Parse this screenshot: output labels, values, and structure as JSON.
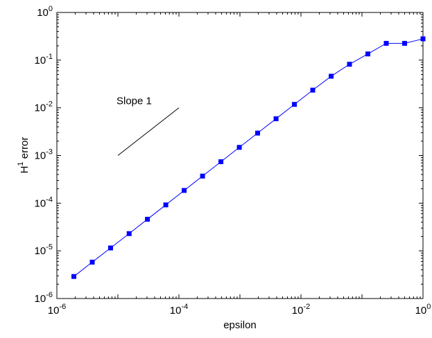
{
  "chart_data": {
    "type": "line",
    "xlabel": "epsilon",
    "ylabel": "H",
    "ylabel_sup": "1",
    "ylabel_suffix": " error",
    "x_scale": "log",
    "y_scale": "log",
    "xlim": [
      1e-06,
      1
    ],
    "ylim": [
      1e-06,
      1
    ],
    "x_ticks": [
      {
        "value": 1e-06,
        "base": "10",
        "exp": "-6"
      },
      {
        "value": 0.0001,
        "base": "10",
        "exp": "-4"
      },
      {
        "value": 0.01,
        "base": "10",
        "exp": "-2"
      },
      {
        "value": 1,
        "base": "10",
        "exp": "0"
      }
    ],
    "y_ticks": [
      {
        "value": 1e-06,
        "base": "10",
        "exp": "-6"
      },
      {
        "value": 1e-05,
        "base": "10",
        "exp": "-5"
      },
      {
        "value": 0.0001,
        "base": "10",
        "exp": "-4"
      },
      {
        "value": 0.001,
        "base": "10",
        "exp": "-3"
      },
      {
        "value": 0.01,
        "base": "10",
        "exp": "-2"
      },
      {
        "value": 0.1,
        "base": "10",
        "exp": "-1"
      },
      {
        "value": 1,
        "base": "10",
        "exp": "0"
      }
    ],
    "grid": false,
    "series": [
      {
        "color": "#0000ff",
        "marker": "square",
        "x": [
          1.9e-06,
          3.8e-06,
          7.6e-06,
          1.53e-05,
          3.05e-05,
          6.1e-05,
          0.000122,
          0.000244,
          0.000488,
          0.000977,
          0.00195,
          0.00391,
          0.00781,
          0.0156,
          0.0313,
          0.0625,
          0.125,
          0.25,
          0.5,
          1.0
        ],
        "y": [
          2.9e-06,
          5.8e-06,
          1.15e-05,
          2.3e-05,
          4.6e-05,
          9.2e-05,
          0.000185,
          0.00037,
          0.00074,
          0.00148,
          0.00295,
          0.0059,
          0.0118,
          0.0235,
          0.046,
          0.082,
          0.135,
          0.225,
          0.225,
          0.28
        ]
      }
    ],
    "annotations": [
      {
        "text": "Slope 1",
        "x": 1e-05,
        "y": 0.014
      }
    ],
    "reference_line": {
      "label": "Slope 1",
      "x": [
        1e-05,
        0.0001
      ],
      "y": [
        0.001,
        0.01
      ],
      "color": "#000000"
    }
  }
}
